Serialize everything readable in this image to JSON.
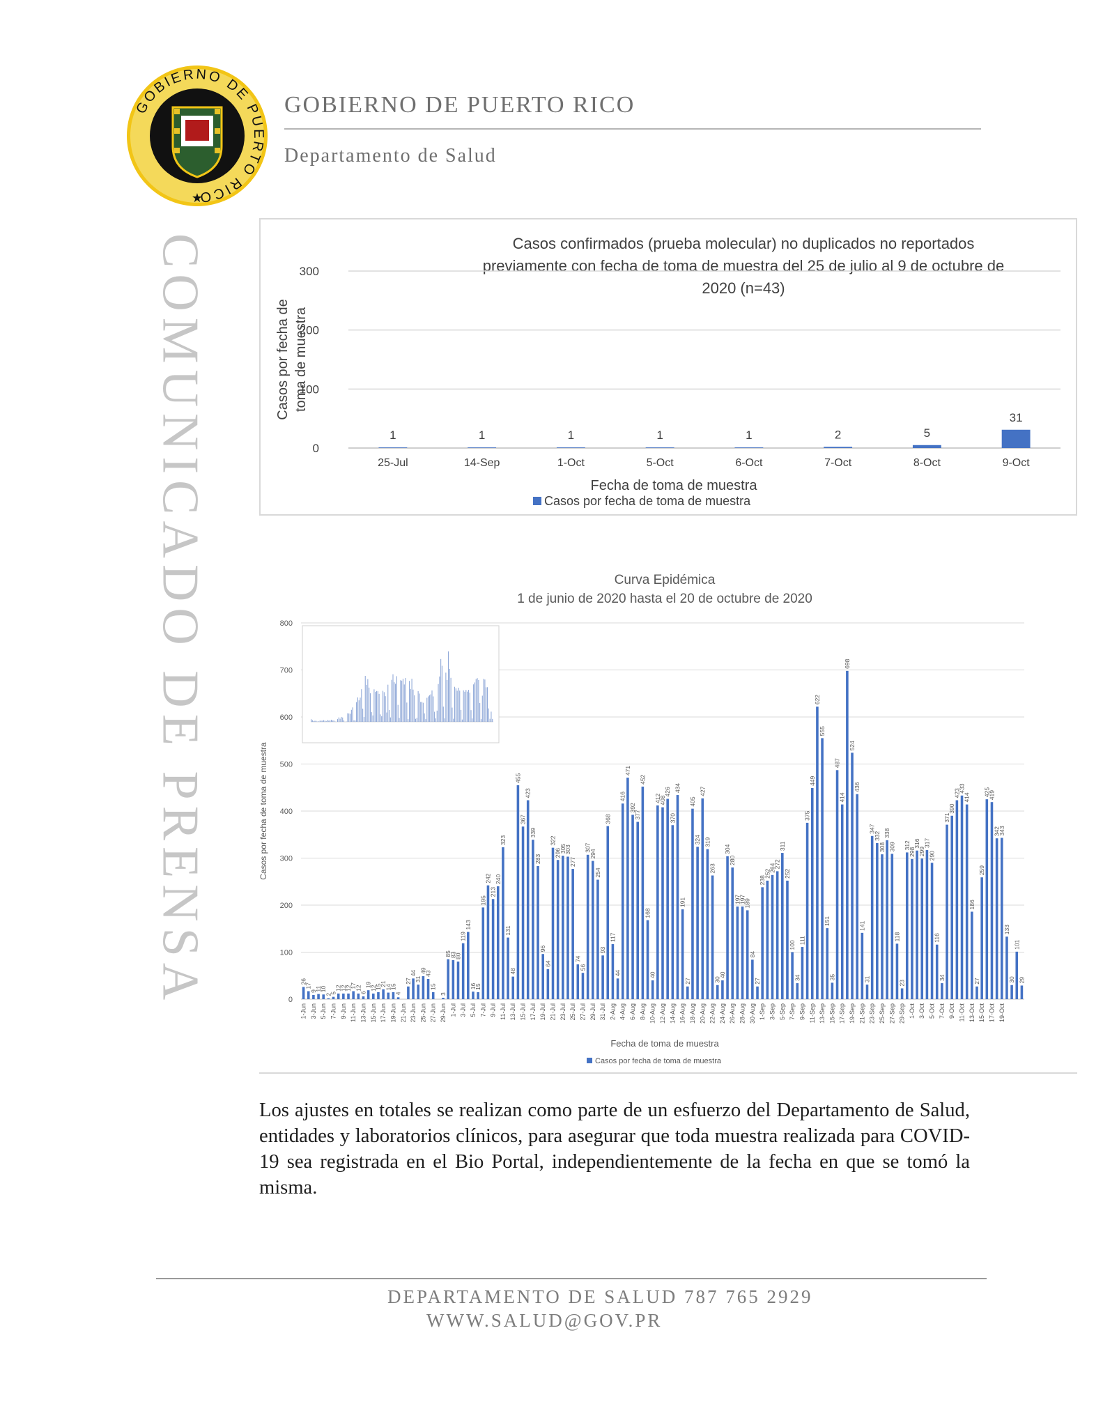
{
  "header": {
    "seal_text": "GOBIERNO DE PUERTO RICO",
    "title": "GOBIERNO DE PUERTO RICO",
    "subtitle": "Departamento de Salud"
  },
  "side_banner": "COMUNICADO DE PRENSA",
  "colors": {
    "bar": "#4472c4",
    "grid": "#d9d9d9",
    "gold": "#e8c227",
    "navy": "#1b2a5c"
  },
  "chart_data": [
    {
      "type": "bar",
      "title": "Casos confirmados (prueba molecular) no duplicados no reportados previamente con fecha de toma de muestra del 25 de julio al 9 de octubre de 2020 (n=43)",
      "title_lines": [
        "Casos confirmados (prueba molecular) no duplicados no reportados",
        "previamente con fecha de toma de muestra del 25 de julio al 9 de octubre de",
        "2020 (n=43)"
      ],
      "categories": [
        "25-Jul",
        "14-Sep",
        "1-Oct",
        "5-Oct",
        "6-Oct",
        "7-Oct",
        "8-Oct",
        "9-Oct"
      ],
      "series": [
        {
          "name": "Casos por fecha de toma de muestra",
          "values": [
            1,
            1,
            1,
            1,
            1,
            2,
            5,
            31
          ]
        }
      ],
      "xlabel": "Fecha de toma de muestra",
      "ylabel_lines": [
        "Casos por fecha de",
        "toma de muestra"
      ],
      "ylim": [
        0,
        300
      ],
      "yticks": [
        0,
        100,
        200,
        300
      ],
      "grid": true,
      "legend": "bottom"
    },
    {
      "type": "bar",
      "title_lines": [
        "Curva Epidémica",
        "1 de junio de 2020 hasta el 20 de octubre de 2020"
      ],
      "start_label": "1-Jun",
      "tick_labels": [
        "1-Jun",
        "3-Jun",
        "5-Jun",
        "7-Jun",
        "9-Jun",
        "11-Jun",
        "13-Jun",
        "15-Jun",
        "17-Jun",
        "19-Jun",
        "21-Jun",
        "23-Jun",
        "25-Jun",
        "27-Jun",
        "29-Jun",
        "1-Jul",
        "3-Jul",
        "5-Jul",
        "7-Jul",
        "9-Jul",
        "11-Jul",
        "13-Jul",
        "15-Jul",
        "17-Jul",
        "19-Jul",
        "21-Jul",
        "23-Jul",
        "25-Jul",
        "27-Jul",
        "29-Jul",
        "31-Jul",
        "2-Aug",
        "4-Aug",
        "6-Aug",
        "8-Aug",
        "10-Aug",
        "12-Aug",
        "14-Aug",
        "16-Aug",
        "18-Aug",
        "20-Aug",
        "22-Aug",
        "24-Aug",
        "26-Aug",
        "28-Aug",
        "30-Aug",
        "1-Sep",
        "3-Sep",
        "5-Sep",
        "7-Sep",
        "9-Sep",
        "11-Sep",
        "13-Sep",
        "15-Sep",
        "17-Sep",
        "19-Sep",
        "21-Sep",
        "23-Sep",
        "25-Sep",
        "27-Sep",
        "29-Sep",
        "1-Oct",
        "3-Oct",
        "5-Oct",
        "7-Oct",
        "9-Oct",
        "11-Oct",
        "13-Oct",
        "15-Oct",
        "17-Oct",
        "19-Oct"
      ],
      "series": [
        {
          "name": "Casos por fecha de toma de muestra",
          "values": [
            26,
            17,
            9,
            11,
            10,
            2,
            5,
            12,
            12,
            12,
            17,
            12,
            6,
            19,
            12,
            15,
            21,
            14,
            15,
            4,
            0,
            27,
            44,
            31,
            49,
            43,
            15,
            0,
            3,
            85,
            83,
            80,
            119,
            143,
            16,
            15,
            195,
            242,
            213,
            240,
            323,
            131,
            48,
            455,
            367,
            423,
            339,
            283,
            96,
            64,
            322,
            296,
            305,
            303,
            277,
            74,
            56,
            307,
            294,
            254,
            93,
            368,
            117,
            44,
            416,
            471,
            392,
            377,
            452,
            168,
            40,
            412,
            408,
            426,
            370,
            434,
            191,
            27,
            405,
            324,
            427,
            319,
            263,
            30,
            40,
            304,
            280,
            197,
            197,
            189,
            84,
            27,
            238,
            252,
            264,
            272,
            311,
            252,
            100,
            34,
            111,
            375,
            449,
            622,
            555,
            151,
            35,
            487,
            414,
            698,
            524,
            436,
            141,
            31,
            347,
            332,
            308,
            338,
            309,
            118,
            23,
            312,
            298,
            316,
            299,
            317,
            290,
            116,
            34,
            371,
            390,
            423,
            433,
            414,
            186,
            27,
            259,
            425,
            419,
            342,
            343,
            133,
            30,
            101,
            29
          ]
        }
      ],
      "xlabel": "Fecha de toma de muestra",
      "ylabel": "Casos por fecha de toma de muestra",
      "ylim": [
        0,
        800
      ],
      "yticks": [
        0,
        100,
        200,
        300,
        400,
        500,
        600,
        700,
        800
      ],
      "grid": true,
      "legend": "bottom"
    }
  ],
  "body": {
    "paragraph": "Los ajustes en totales se realizan como parte de un esfuerzo del Departamento de Salud, entidades y laboratorios clínicos, para asegurar que toda muestra realizada para COVID-19 sea registrada en el Bio Portal, independientemente de la fecha en que se tomó la misma."
  },
  "footer": {
    "phone_line": "DEPARTAMENTO DE SALUD 787 765 2929",
    "web_line": "WWW.SALUD@GOV.PR"
  }
}
